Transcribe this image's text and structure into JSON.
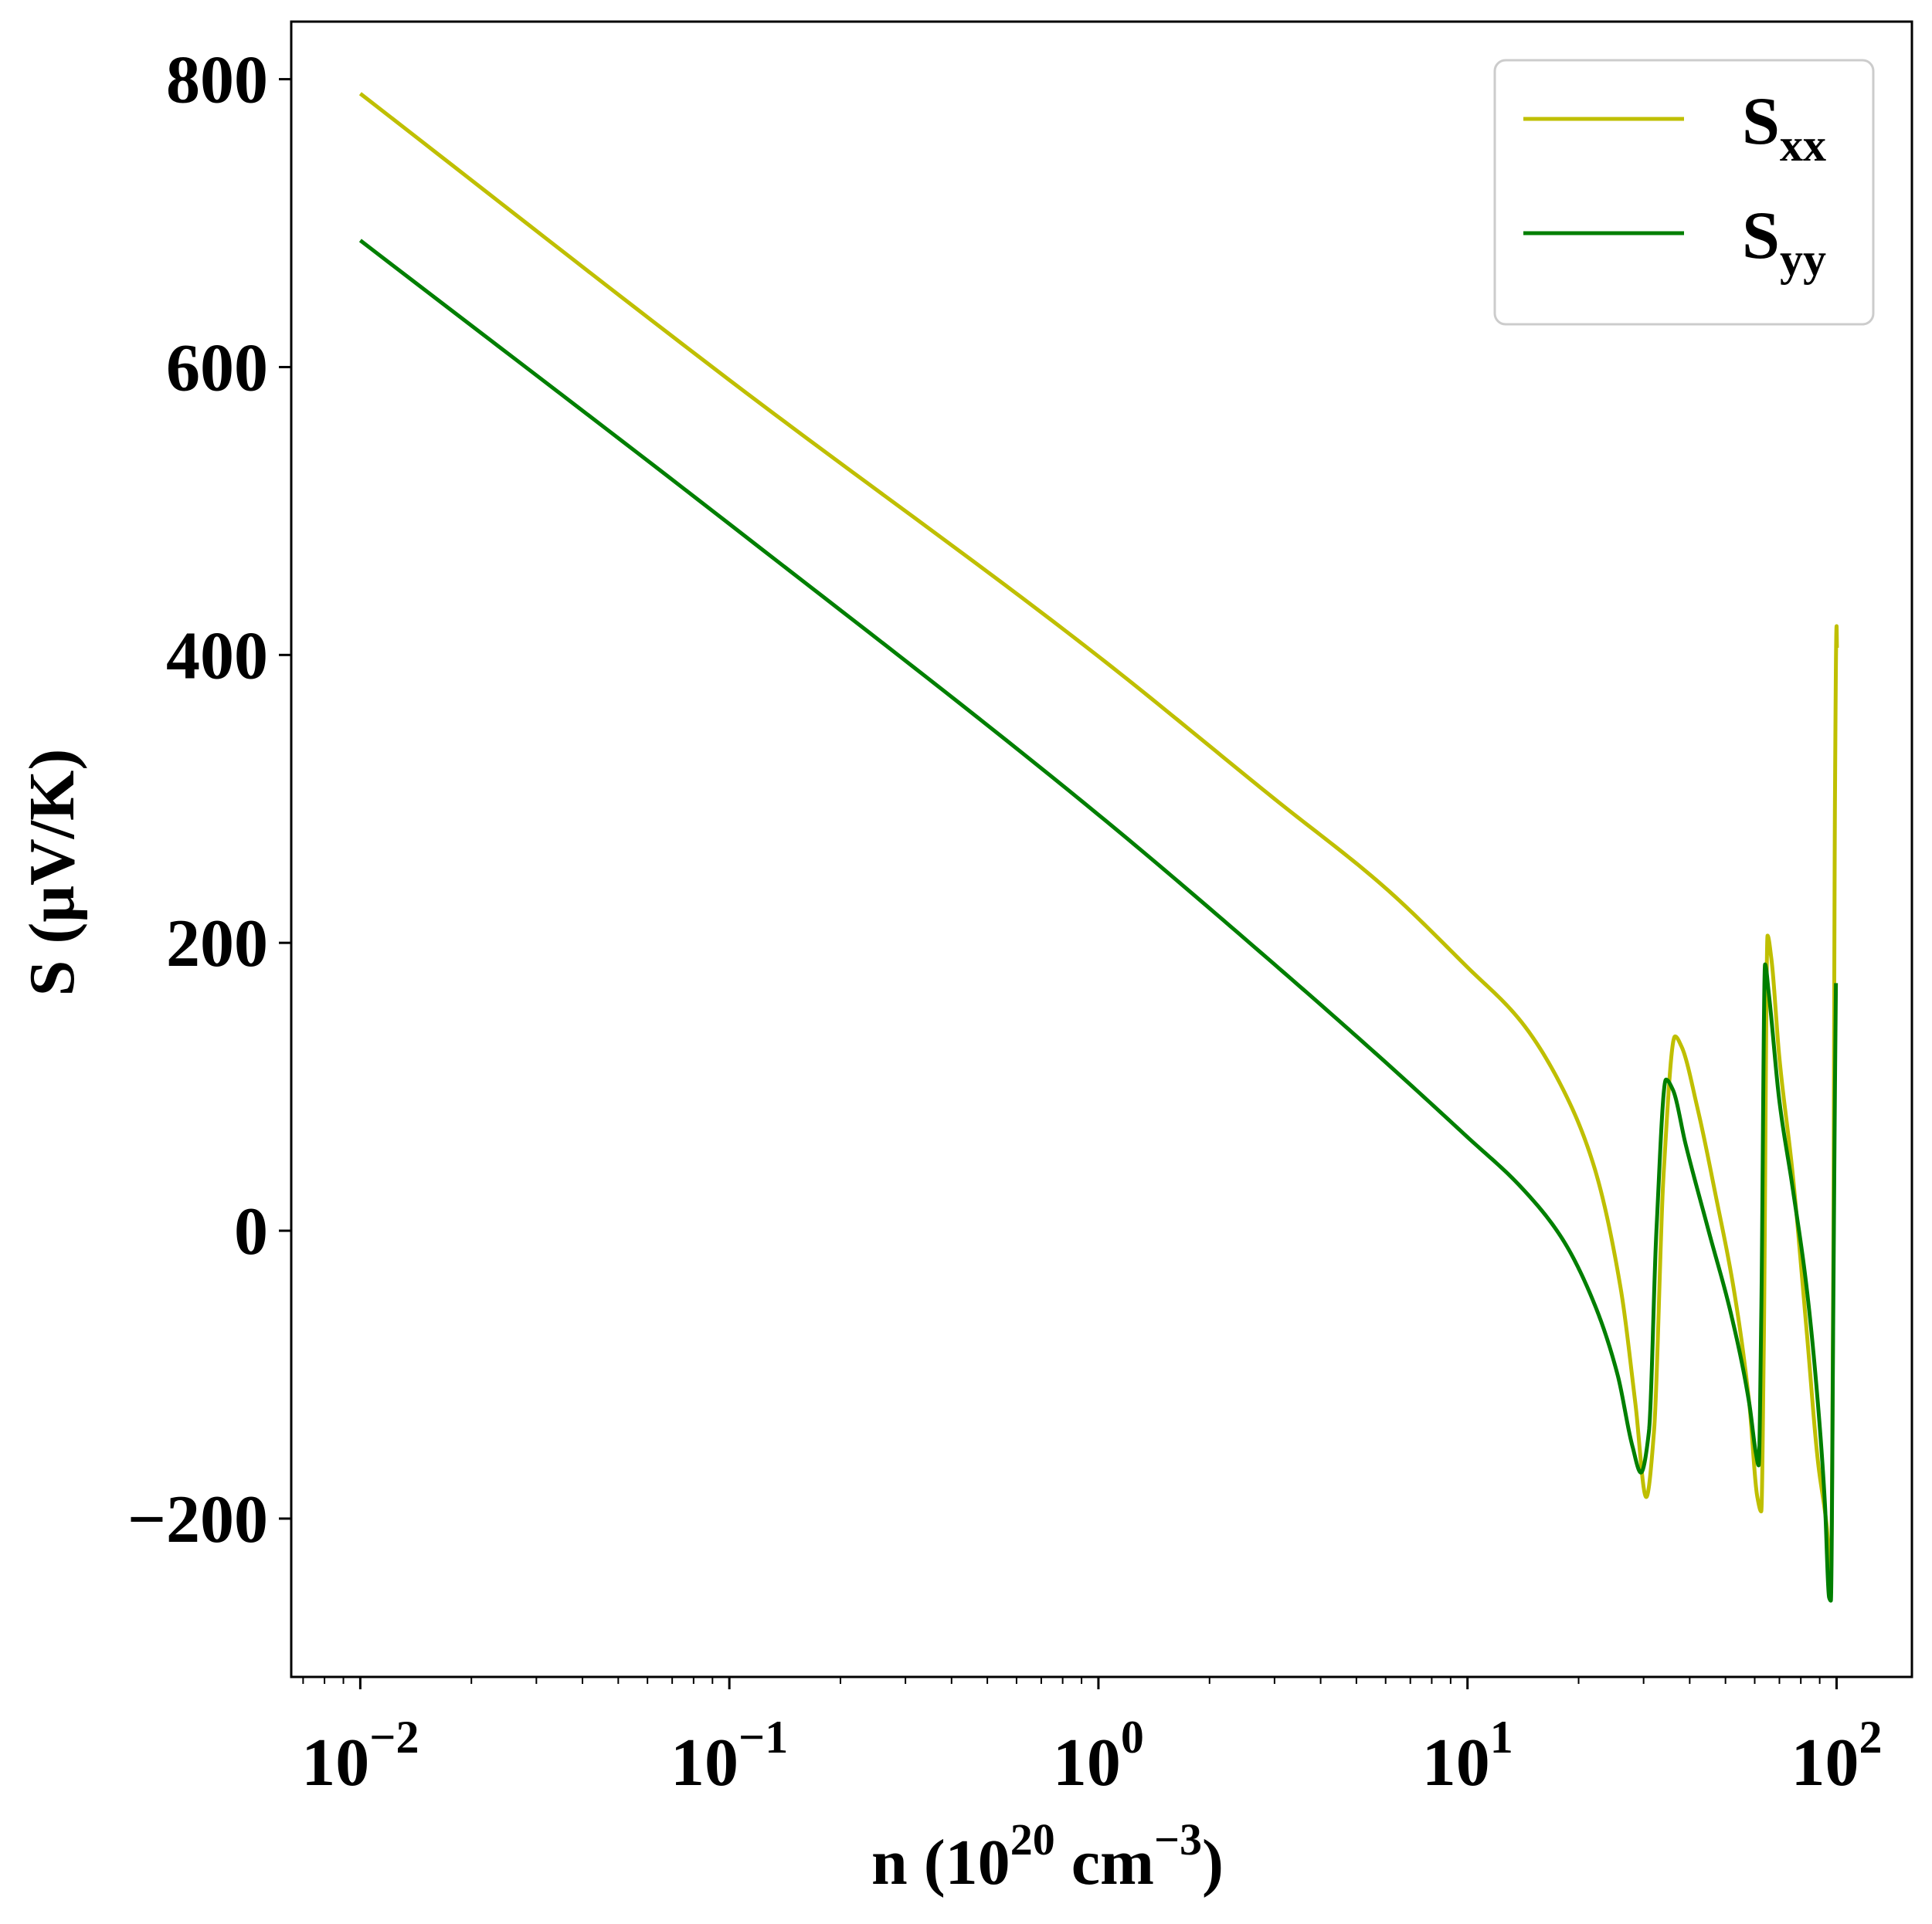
{
  "chart_data": {
    "type": "line",
    "title": "",
    "xlabel": {
      "base": "n (10",
      "exp1": "20",
      "mid": " cm",
      "exp2": "−3",
      "end": ")"
    },
    "ylabel": "S (μV/K)",
    "xscale": "log",
    "xlim": [
      0.0065,
      160
    ],
    "ylim": [
      -310,
      840
    ],
    "x_ticks": [
      {
        "value": 0.01,
        "base": "10",
        "exp": "−2"
      },
      {
        "value": 0.1,
        "base": "10",
        "exp": "−1"
      },
      {
        "value": 1,
        "base": "10",
        "exp": "0"
      },
      {
        "value": 10,
        "base": "10",
        "exp": "1"
      },
      {
        "value": 100,
        "base": "10",
        "exp": "2"
      }
    ],
    "y_ticks": [
      {
        "value": -200,
        "label": "−200"
      },
      {
        "value": 0,
        "label": "0"
      },
      {
        "value": 200,
        "label": "200"
      },
      {
        "value": 400,
        "label": "400"
      },
      {
        "value": 600,
        "label": "600"
      },
      {
        "value": 800,
        "label": "800"
      }
    ],
    "legend_position": "top-right",
    "series": [
      {
        "name": "S_xx",
        "label_main": "S",
        "label_sub": "xx",
        "color": "#bfbf00",
        "points": [
          [
            0.01,
            790
          ],
          [
            0.1,
            591
          ],
          [
            1,
            399
          ],
          [
            3,
            300
          ],
          [
            6,
            238
          ],
          [
            10,
            183
          ],
          [
            14,
            145
          ],
          [
            18,
            100
          ],
          [
            22,
            45
          ],
          [
            26,
            -40
          ],
          [
            28.5,
            -120
          ],
          [
            30.5,
            -185
          ],
          [
            32,
            -140
          ],
          [
            34,
            40
          ],
          [
            36.5,
            135
          ],
          [
            38,
            128
          ],
          [
            42,
            85
          ],
          [
            47,
            25
          ],
          [
            53,
            -45
          ],
          [
            58,
            -120
          ],
          [
            61,
            -185
          ],
          [
            62.5,
            -195
          ],
          [
            63.5,
            -80
          ],
          [
            65,
            205
          ],
          [
            66.5,
            190
          ],
          [
            70,
            120
          ],
          [
            76,
            40
          ],
          [
            83,
            -70
          ],
          [
            89,
            -160
          ],
          [
            94,
            -205
          ],
          [
            96.5,
            -240
          ],
          [
            98,
            -20
          ],
          [
            99,
            300
          ],
          [
            100,
            420
          ],
          [
            100.2,
            405
          ]
        ]
      },
      {
        "name": "S_yy",
        "label_main": "S",
        "label_sub": "yy",
        "color": "#007f00",
        "points": [
          [
            0.01,
            688
          ],
          [
            0.1,
            491
          ],
          [
            1,
            289
          ],
          [
            3,
            185
          ],
          [
            6,
            117
          ],
          [
            10,
            65
          ],
          [
            14,
            30
          ],
          [
            18,
            -5
          ],
          [
            22,
            -50
          ],
          [
            25.5,
            -100
          ],
          [
            28,
            -150
          ],
          [
            29.5,
            -168
          ],
          [
            31,
            -140
          ],
          [
            32.5,
            0
          ],
          [
            34.5,
            105
          ],
          [
            36,
            98
          ],
          [
            39,
            60
          ],
          [
            45,
            0
          ],
          [
            52,
            -60
          ],
          [
            58,
            -120
          ],
          [
            60.5,
            -155
          ],
          [
            61.5,
            -163
          ],
          [
            62.5,
            -60
          ],
          [
            64,
            185
          ],
          [
            65.5,
            165
          ],
          [
            70,
            90
          ],
          [
            76,
            30
          ],
          [
            83,
            -40
          ],
          [
            89,
            -120
          ],
          [
            93,
            -190
          ],
          [
            95.5,
            -255
          ],
          [
            96.5,
            -257
          ],
          [
            98,
            -50
          ],
          [
            99,
            100
          ],
          [
            99.6,
            172
          ]
        ]
      }
    ]
  }
}
